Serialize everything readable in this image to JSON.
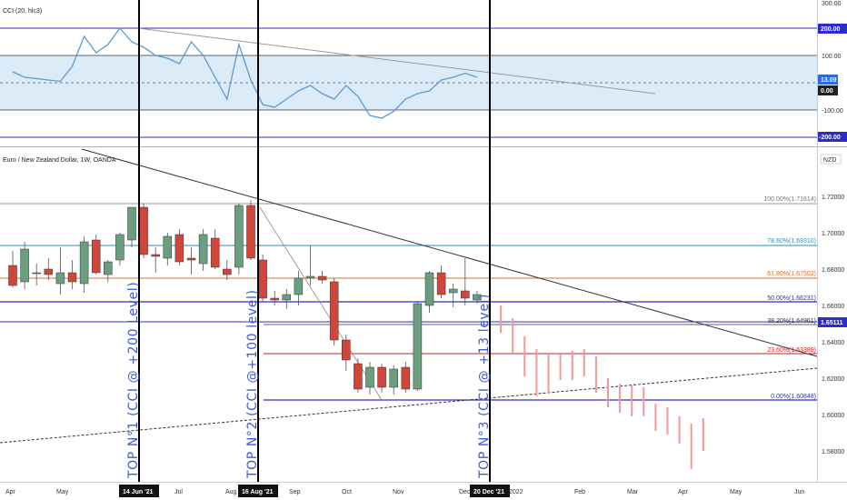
{
  "indicator": {
    "label": "CCI (20, hlc3)",
    "axis_ticks": [
      "300.00",
      "100.00",
      "0.00",
      "-100.00"
    ],
    "tags": {
      "level_high": "200.00",
      "current": "13.09",
      "zero": "0.00",
      "level_low": "-200.00"
    }
  },
  "main": {
    "label": "Euro / New Zealand Dollar, 1W, OANDA",
    "currency": "NZD",
    "price_ticks": [
      "1.72000",
      "1.70000",
      "1.68000",
      "1.66000",
      "1.64000",
      "1.62000",
      "1.60000",
      "1.58000"
    ],
    "price_tag": "1.65111",
    "fib_levels": [
      {
        "text": "100.00%(1.71614)",
        "color": "#777777"
      },
      {
        "text": "78.60%(1.69310)",
        "color": "#2a8fb3"
      },
      {
        "text": "61.80%(1.67502)",
        "color": "#e07020"
      },
      {
        "text": "50.00%(1.66231)",
        "color": "#2c2cc8"
      },
      {
        "text": "38.20%(1.64961)",
        "color": "#333333"
      },
      {
        "text": "23.60%(1.63389)",
        "color": "#c82020"
      },
      {
        "text": "0.00%(1.60848)",
        "color": "#2c2cc8"
      }
    ],
    "annotations": [
      "TOP N°1 (CCI @ +200 Level)",
      "TOP N°2 (CCI @+100 level)",
      "TOP N°3 (CCI @ +13 level)"
    ]
  },
  "time_axis": {
    "labels": [
      "Apr",
      "May",
      "Jul",
      "Aug",
      "Sep",
      "Oct",
      "Nov",
      "Dec",
      "2022",
      "Feb",
      "Mar",
      "Apr",
      "May",
      "Jun"
    ],
    "tags": [
      "14 Jun '21",
      "16 Aug '21",
      "20 Dec '21"
    ]
  },
  "colors": {
    "bull": "#6a9e7f",
    "bear": "#d0463a",
    "forecast": "#f19a9a",
    "cci_line": "#5a9bd5"
  },
  "chart_data": {
    "type": "candlestick",
    "title": "Euro / New Zealand Dollar, 1W, OANDA",
    "ylabel": "NZD",
    "ylim": [
      1.565,
      1.73
    ],
    "candles": [
      {
        "o": 1.68,
        "h": 1.688,
        "l": 1.668,
        "c": 1.669
      },
      {
        "o": 1.671,
        "h": 1.693,
        "l": 1.667,
        "c": 1.689
      },
      {
        "o": 1.676,
        "h": 1.681,
        "l": 1.669,
        "c": 1.676
      },
      {
        "o": 1.678,
        "h": 1.684,
        "l": 1.672,
        "c": 1.675
      },
      {
        "o": 1.67,
        "h": 1.69,
        "l": 1.664,
        "c": 1.676
      },
      {
        "o": 1.676,
        "h": 1.683,
        "l": 1.667,
        "c": 1.671
      },
      {
        "o": 1.67,
        "h": 1.696,
        "l": 1.665,
        "c": 1.693
      },
      {
        "o": 1.694,
        "h": 1.697,
        "l": 1.675,
        "c": 1.676
      },
      {
        "o": 1.675,
        "h": 1.683,
        "l": 1.671,
        "c": 1.682
      },
      {
        "o": 1.683,
        "h": 1.698,
        "l": 1.68,
        "c": 1.697
      },
      {
        "o": 1.694,
        "h": 1.712,
        "l": 1.69,
        "c": 1.712
      },
      {
        "o": 1.712,
        "h": 1.714,
        "l": 1.684,
        "c": 1.686
      },
      {
        "o": 1.686,
        "h": 1.69,
        "l": 1.676,
        "c": 1.685
      },
      {
        "o": 1.684,
        "h": 1.698,
        "l": 1.68,
        "c": 1.696
      },
      {
        "o": 1.697,
        "h": 1.7,
        "l": 1.68,
        "c": 1.682
      },
      {
        "o": 1.684,
        "h": 1.69,
        "l": 1.675,
        "c": 1.683
      },
      {
        "o": 1.681,
        "h": 1.7,
        "l": 1.677,
        "c": 1.697
      },
      {
        "o": 1.695,
        "h": 1.7,
        "l": 1.678,
        "c": 1.679
      },
      {
        "o": 1.678,
        "h": 1.683,
        "l": 1.672,
        "c": 1.675
      },
      {
        "o": 1.679,
        "h": 1.714,
        "l": 1.675,
        "c": 1.713
      },
      {
        "o": 1.713,
        "h": 1.716,
        "l": 1.683,
        "c": 1.684
      },
      {
        "o": 1.683,
        "h": 1.686,
        "l": 1.66,
        "c": 1.662
      },
      {
        "o": 1.662,
        "h": 1.666,
        "l": 1.658,
        "c": 1.661
      },
      {
        "o": 1.661,
        "h": 1.667,
        "l": 1.656,
        "c": 1.664
      },
      {
        "o": 1.664,
        "h": 1.677,
        "l": 1.658,
        "c": 1.673
      },
      {
        "o": 1.673,
        "h": 1.691,
        "l": 1.669,
        "c": 1.674
      },
      {
        "o": 1.674,
        "h": 1.677,
        "l": 1.67,
        "c": 1.672
      },
      {
        "o": 1.671,
        "h": 1.673,
        "l": 1.636,
        "c": 1.639
      },
      {
        "o": 1.639,
        "h": 1.642,
        "l": 1.622,
        "c": 1.628
      },
      {
        "o": 1.626,
        "h": 1.629,
        "l": 1.61,
        "c": 1.612
      },
      {
        "o": 1.613,
        "h": 1.627,
        "l": 1.609,
        "c": 1.624
      },
      {
        "o": 1.624,
        "h": 1.626,
        "l": 1.61,
        "c": 1.613
      },
      {
        "o": 1.613,
        "h": 1.625,
        "l": 1.609,
        "c": 1.623
      },
      {
        "o": 1.624,
        "h": 1.627,
        "l": 1.61,
        "c": 1.612
      },
      {
        "o": 1.612,
        "h": 1.66,
        "l": 1.611,
        "c": 1.659
      },
      {
        "o": 1.658,
        "h": 1.677,
        "l": 1.654,
        "c": 1.676
      },
      {
        "o": 1.676,
        "h": 1.68,
        "l": 1.662,
        "c": 1.664
      },
      {
        "o": 1.665,
        "h": 1.67,
        "l": 1.657,
        "c": 1.667
      },
      {
        "o": 1.666,
        "h": 1.684,
        "l": 1.658,
        "c": 1.662
      },
      {
        "o": 1.661,
        "h": 1.666,
        "l": 1.659,
        "c": 1.664
      }
    ],
    "forecast_bars": [
      {
        "h": 1.659,
        "l": 1.651
      },
      {
        "h": 1.658,
        "l": 1.643
      },
      {
        "h": 1.651,
        "l": 1.631
      },
      {
        "h": 1.641,
        "l": 1.619
      },
      {
        "h": 1.634,
        "l": 1.608
      },
      {
        "h": 1.631,
        "l": 1.61
      },
      {
        "h": 1.631,
        "l": 1.617
      },
      {
        "h": 1.633,
        "l": 1.617
      },
      {
        "h": 1.634,
        "l": 1.619
      },
      {
        "h": 1.63,
        "l": 1.61
      },
      {
        "h": 1.618,
        "l": 1.602
      },
      {
        "h": 1.615,
        "l": 1.599
      },
      {
        "h": 1.614,
        "l": 1.597
      },
      {
        "h": 1.613,
        "l": 1.597
      },
      {
        "h": 1.604,
        "l": 1.589
      },
      {
        "h": 1.602,
        "l": 1.587
      },
      {
        "h": 1.597,
        "l": 1.582
      },
      {
        "h": 1.593,
        "l": 1.568
      },
      {
        "h": 1.596,
        "l": 1.578
      }
    ],
    "cci": [
      40,
      20,
      15,
      10,
      5,
      60,
      170,
      110,
      140,
      200,
      150,
      130,
      100,
      90,
      70,
      150,
      100,
      20,
      -60,
      140,
      10,
      -80,
      -90,
      -60,
      -30,
      -10,
      -40,
      -60,
      -10,
      -50,
      -120,
      -130,
      -105,
      -60,
      -40,
      -30,
      10,
      20,
      35,
      20
    ]
  }
}
